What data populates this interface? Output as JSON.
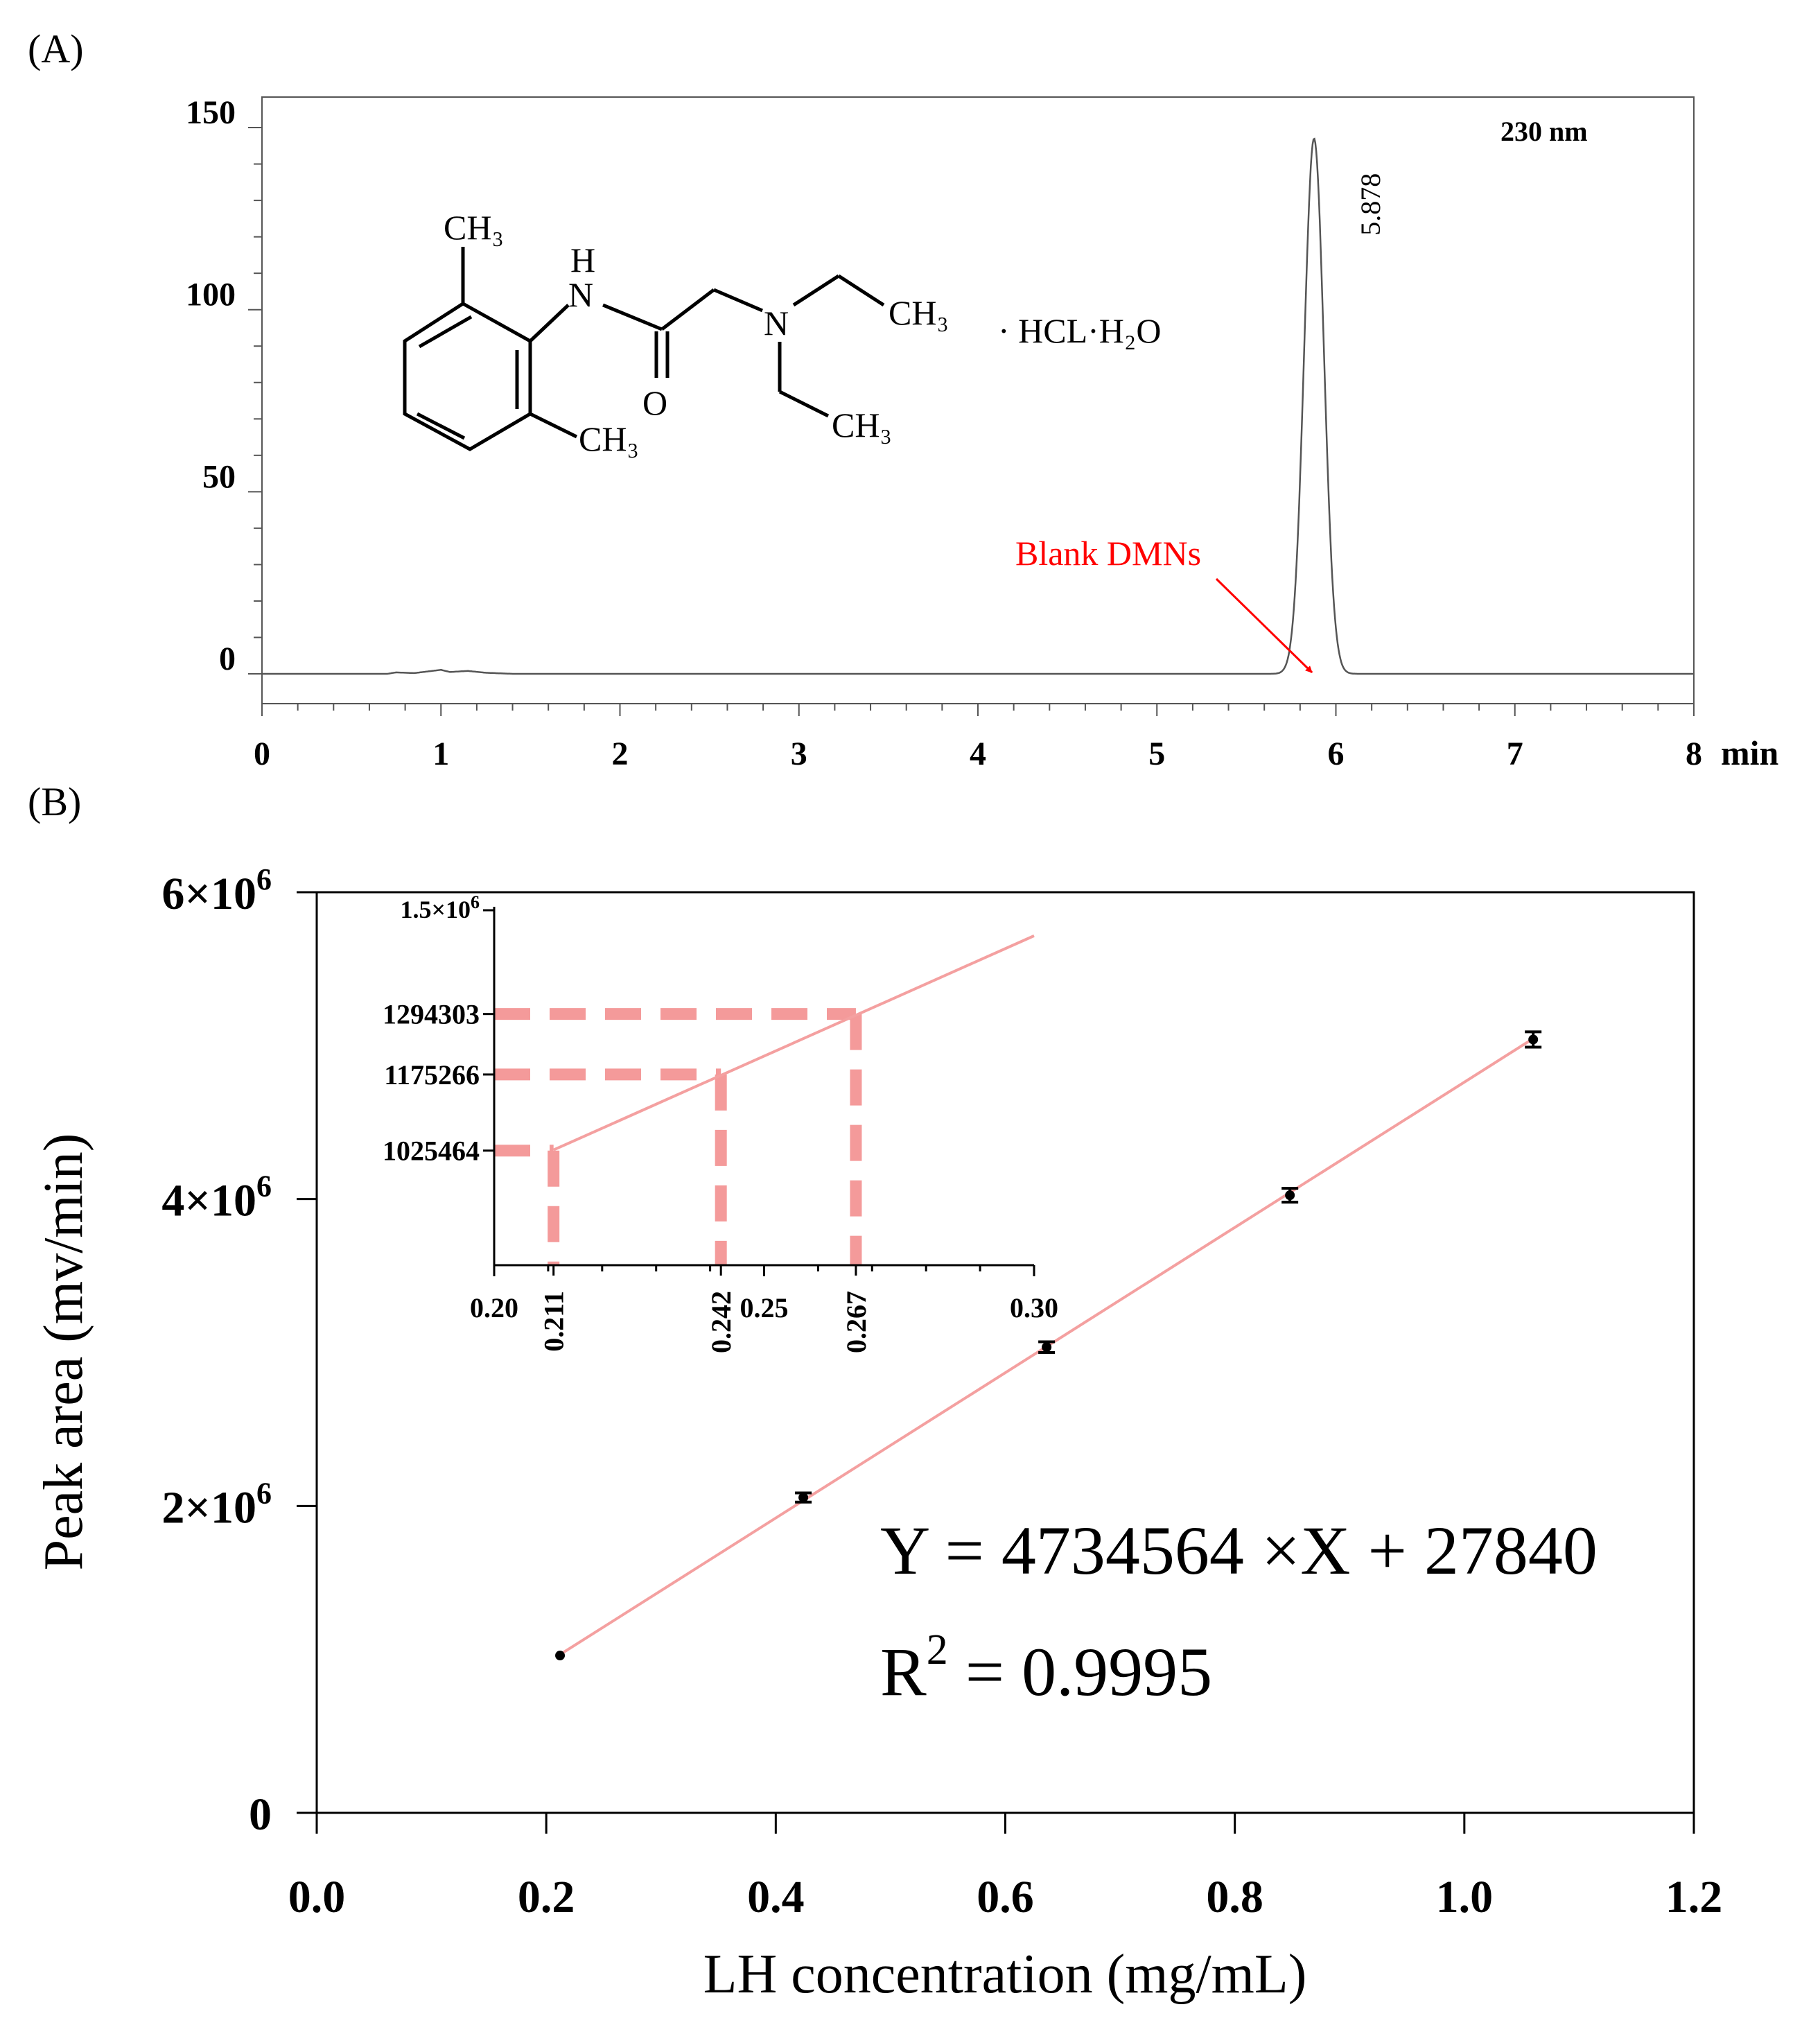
{
  "panel_labels": {
    "a": "(A)",
    "b": "(B)"
  },
  "colors": {
    "fit_line": "#f4a0a0",
    "guide": "#f49a9a",
    "annotation": "#ff0000",
    "trace": "#555555",
    "axis": "#000000"
  },
  "structure": {
    "ch3_top_ring": "CH₃",
    "h": "H",
    "n_amide": "N",
    "o": "O",
    "n_amine": "N",
    "ch3_right_top": "CH₃",
    "ch3_right_bottom": "CH₃",
    "ch3_ring_bottom": "CH₃",
    "salt": "·  HCL·H₂O"
  },
  "chart_data": [
    {
      "type": "line",
      "panel": "A",
      "wavelength_label": "230 nm",
      "peak_label": "5.878",
      "annotation": "Blank DMNs",
      "x_unit_label": "min",
      "xlim": [
        0,
        8
      ],
      "ylim": [
        -18,
        157
      ],
      "x_ticks": [
        0,
        1,
        2,
        3,
        4,
        5,
        6,
        7,
        8
      ],
      "y_ticks": [
        0,
        50,
        100,
        150
      ],
      "series": [
        {
          "peak_center": 5.878,
          "peak_height": 147,
          "peak_sigma": 0.055,
          "baseline": [
            [
              0,
              0
            ],
            [
              0.7,
              0
            ],
            [
              0.75,
              0.4
            ],
            [
              0.85,
              0.2
            ],
            [
              0.95,
              0.8
            ],
            [
              1.0,
              1.1
            ],
            [
              1.05,
              0.5
            ],
            [
              1.15,
              0.8
            ],
            [
              1.25,
              0.3
            ],
            [
              1.4,
              0
            ],
            [
              8,
              0
            ]
          ]
        }
      ]
    },
    {
      "type": "scatter",
      "panel": "B",
      "xlabel": "LH concentration (mg/mL)",
      "ylabel": "Peak area (mv/min)",
      "xlim": [
        0,
        1.2
      ],
      "ylim": [
        0,
        6000000
      ],
      "x_tick_labels": [
        "0.0",
        "0.2",
        "0.4",
        "0.6",
        "0.8",
        "1.0",
        "1.2"
      ],
      "y_ticks": [
        {
          "value": 0,
          "mantissa": "0",
          "exponent": ""
        },
        {
          "value": 2000000,
          "mantissa": "2×10",
          "exponent": "6"
        },
        {
          "value": 4000000,
          "mantissa": "4×10",
          "exponent": "6"
        },
        {
          "value": 6000000,
          "mantissa": "6×10",
          "exponent": "6"
        }
      ],
      "equation": "Y = 4734564 ×X + 27840",
      "r2": {
        "base": "R",
        "exp": "2",
        "rest": " = 0.9995"
      },
      "fit": {
        "slope": 4734564,
        "intercept": 27840,
        "x_range": [
          0.211,
          1.058
        ]
      },
      "points": [
        {
          "x": 0.212,
          "y": 1025464,
          "err": 0
        },
        {
          "x": 0.424,
          "y": 2055000,
          "err": 30000
        },
        {
          "x": 0.636,
          "y": 3035000,
          "err": 35000
        },
        {
          "x": 0.848,
          "y": 4025000,
          "err": 45000
        },
        {
          "x": 1.06,
          "y": 5040000,
          "err": 50000
        }
      ],
      "inset": {
        "xlim": [
          0.2,
          0.3
        ],
        "ylim": [
          800000,
          1500000
        ],
        "x_tick_labels": [
          {
            "value": 0.2,
            "label": "0.20"
          },
          {
            "value": 0.25,
            "label": "0.25"
          },
          {
            "value": 0.3,
            "label": "0.30"
          }
        ],
        "highlight_x": [
          {
            "value": 0.211,
            "label": "0.211"
          },
          {
            "value": 0.242,
            "label": "0.242"
          },
          {
            "value": 0.267,
            "label": "0.267"
          }
        ],
        "highlight_y": [
          {
            "value": 1025464,
            "label": "1025464"
          },
          {
            "value": 1175266,
            "label": "1175266"
          },
          {
            "value": 1294303,
            "label": "1294303"
          }
        ],
        "y_top": {
          "mantissa": "1.5×10",
          "exponent": "6"
        },
        "line_x_range": [
          0.211,
          0.3
        ]
      }
    }
  ]
}
